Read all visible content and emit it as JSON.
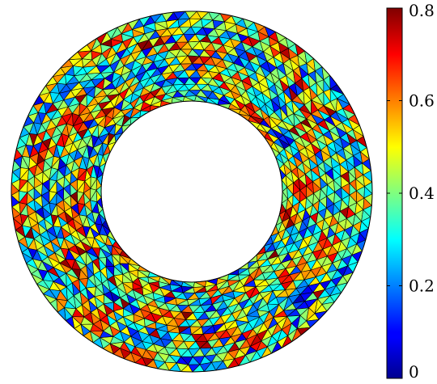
{
  "chart_data": {
    "type": "heatmap",
    "plot_kind": "triangular mesh on an annulus, colored by per-element value",
    "title": "",
    "xlabel": "",
    "ylabel": "",
    "domain": {
      "shape": "annulus",
      "inner_radius_ratio": 0.5,
      "mesh_rings": 13,
      "mesh_density": "finer near the inner boundary"
    },
    "colorbar": {
      "colormap": "jet",
      "range": [
        0,
        0.8
      ],
      "ticks": [
        0,
        0.2,
        0.4,
        0.6,
        0.8
      ],
      "tick_labels": [
        "0",
        "0.2",
        "0.4",
        "0.6",
        "0.8"
      ],
      "location": "right"
    },
    "value_summary": {
      "min": 0.05,
      "max": 0.8,
      "typical": 0.4,
      "pattern": "spiral swirl bands around the ring"
    },
    "edge_color": "#000000",
    "grid": false
  }
}
